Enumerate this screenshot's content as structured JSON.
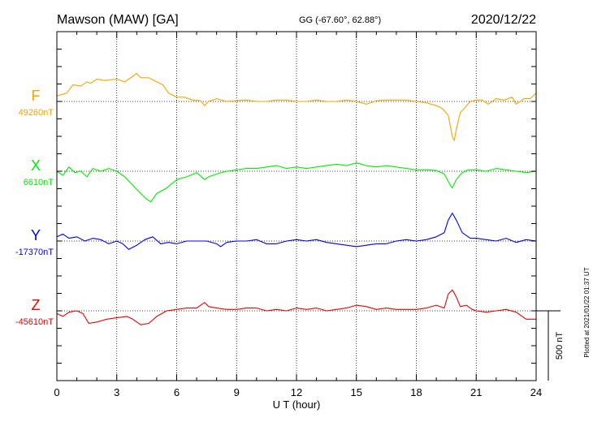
{
  "header": {
    "title": "Mawson (MAW)  [GA]",
    "coords": "GG (-67.60°,  62.88°)",
    "date": "2020/12/22"
  },
  "footer": {
    "plotted": "Plotted at 2021/01/22 01:37 UT",
    "scale_label": "500 nT"
  },
  "chart_data": {
    "type": "line",
    "xlabel": "U T (hour)",
    "xlim": [
      0,
      24
    ],
    "xticks": [
      0,
      3,
      6,
      9,
      12,
      15,
      18,
      21,
      24
    ],
    "scale_bar_nT": 500,
    "grid": "dotted",
    "series": [
      {
        "name": "F",
        "baseline_label": "49260nT",
        "baseline_nT": 49260,
        "color": "#f5a500",
        "x": [
          0,
          0.5,
          0.8,
          1.2,
          1.5,
          1.7,
          2.0,
          2.4,
          3.0,
          3.4,
          3.8,
          4.0,
          4.2,
          4.6,
          5.0,
          5.3,
          5.6,
          6.0,
          6.4,
          6.8,
          7.2,
          7.4,
          7.6,
          8.0,
          8.5,
          9.0,
          9.5,
          10.0,
          10.5,
          11.0,
          11.5,
          12.0,
          12.5,
          13.0,
          13.5,
          14.0,
          14.5,
          15.0,
          15.5,
          16.0,
          16.5,
          17.0,
          17.5,
          18.0,
          18.5,
          19.0,
          19.3,
          19.6,
          19.8,
          19.9,
          20.0,
          20.2,
          20.4,
          20.7,
          21.0,
          21.3,
          21.6,
          22.0,
          22.4,
          22.8,
          23.0,
          23.4,
          23.7,
          24.0
        ],
        "y": [
          40,
          60,
          120,
          110,
          140,
          130,
          160,
          150,
          160,
          140,
          180,
          200,
          170,
          170,
          140,
          120,
          60,
          30,
          30,
          10,
          5,
          -30,
          0,
          20,
          0,
          5,
          10,
          0,
          0,
          10,
          10,
          0,
          0,
          10,
          0,
          0,
          10,
          0,
          -20,
          5,
          10,
          10,
          10,
          0,
          -10,
          -30,
          -50,
          -100,
          -250,
          -280,
          -200,
          -80,
          -50,
          0,
          10,
          10,
          -20,
          20,
          10,
          30,
          -20,
          20,
          20,
          60
        ]
      },
      {
        "name": "X",
        "baseline_label": "6610nT",
        "baseline_nT": 6610,
        "color": "#00ee00",
        "x": [
          0,
          0.3,
          0.6,
          0.9,
          1.2,
          1.5,
          1.8,
          2.2,
          2.6,
          3.0,
          3.4,
          3.8,
          4.2,
          4.5,
          4.7,
          5.0,
          5.5,
          6.0,
          6.5,
          7.0,
          7.4,
          7.6,
          8.0,
          8.5,
          9.0,
          9.5,
          10.0,
          10.5,
          11.0,
          11.5,
          12.0,
          12.5,
          13.0,
          13.5,
          14.0,
          14.5,
          15.0,
          15.5,
          16.0,
          16.5,
          17.0,
          17.5,
          18.0,
          18.5,
          19.0,
          19.4,
          19.7,
          19.8,
          20.0,
          20.3,
          20.6,
          21.0,
          21.5,
          22.0,
          22.5,
          23.0,
          23.5,
          24.0
        ],
        "y": [
          0,
          -30,
          30,
          -10,
          0,
          -40,
          20,
          0,
          20,
          0,
          -40,
          -100,
          -160,
          -200,
          -220,
          -160,
          -120,
          -60,
          -40,
          -10,
          -60,
          -40,
          -20,
          0,
          10,
          20,
          20,
          30,
          40,
          20,
          30,
          20,
          30,
          40,
          50,
          40,
          60,
          40,
          30,
          40,
          30,
          20,
          10,
          10,
          5,
          -20,
          -100,
          -120,
          -60,
          -10,
          10,
          10,
          0,
          20,
          10,
          0,
          -10,
          0
        ]
      },
      {
        "name": "Y",
        "baseline_label": "-17370nT",
        "baseline_nT": -17370,
        "color": "#0000ff",
        "x": [
          0,
          0.3,
          0.6,
          1.0,
          1.4,
          1.8,
          2.2,
          2.6,
          3.0,
          3.3,
          3.6,
          4.0,
          4.4,
          4.8,
          5.2,
          5.6,
          6.0,
          6.5,
          7.0,
          7.5,
          8.0,
          8.2,
          8.5,
          9.0,
          9.5,
          10.0,
          10.5,
          11.0,
          11.5,
          12.0,
          12.5,
          13.0,
          13.5,
          14.0,
          14.5,
          15.0,
          15.5,
          16.0,
          16.5,
          17.0,
          17.5,
          18.0,
          18.5,
          19.0,
          19.4,
          19.6,
          19.8,
          20.0,
          20.3,
          20.7,
          21.0,
          21.5,
          22.0,
          22.5,
          23.0,
          23.5,
          24.0
        ],
        "y": [
          30,
          50,
          20,
          30,
          0,
          20,
          10,
          -20,
          0,
          -20,
          -60,
          -30,
          10,
          30,
          -20,
          -10,
          -20,
          0,
          0,
          0,
          -20,
          -40,
          -10,
          0,
          0,
          10,
          -20,
          -20,
          0,
          10,
          0,
          10,
          -10,
          -20,
          -30,
          -40,
          -30,
          -20,
          -20,
          0,
          10,
          0,
          10,
          30,
          60,
          150,
          200,
          150,
          60,
          20,
          20,
          10,
          0,
          20,
          -10,
          10,
          0
        ]
      },
      {
        "name": "Z",
        "baseline_label": "-45610nT",
        "baseline_nT": -45610,
        "color": "#ee0000",
        "x": [
          0,
          0.3,
          0.6,
          1.0,
          1.3,
          1.6,
          2.0,
          2.5,
          3.0,
          3.5,
          3.8,
          4.0,
          4.2,
          4.6,
          5.0,
          5.5,
          6.0,
          6.5,
          7.0,
          7.4,
          7.6,
          8.0,
          8.5,
          9.0,
          9.5,
          10.0,
          10.5,
          11.0,
          11.5,
          12.0,
          12.5,
          13.0,
          13.5,
          14.0,
          14.5,
          15.0,
          15.5,
          16.0,
          16.5,
          17.0,
          17.5,
          18.0,
          18.5,
          19.0,
          19.4,
          19.6,
          19.8,
          20.0,
          20.2,
          20.5,
          20.8,
          21.0,
          21.5,
          22.0,
          22.5,
          23.0,
          23.5,
          24.0
        ],
        "y": [
          -20,
          -40,
          -10,
          0,
          -20,
          -90,
          -80,
          -60,
          -50,
          -40,
          -60,
          -80,
          -100,
          -90,
          -40,
          0,
          10,
          20,
          20,
          60,
          30,
          20,
          10,
          10,
          20,
          20,
          0,
          10,
          0,
          20,
          10,
          20,
          0,
          10,
          20,
          40,
          30,
          10,
          20,
          10,
          10,
          10,
          20,
          40,
          20,
          120,
          150,
          100,
          30,
          40,
          10,
          0,
          -10,
          0,
          10,
          -10,
          -60,
          -60
        ]
      }
    ]
  }
}
